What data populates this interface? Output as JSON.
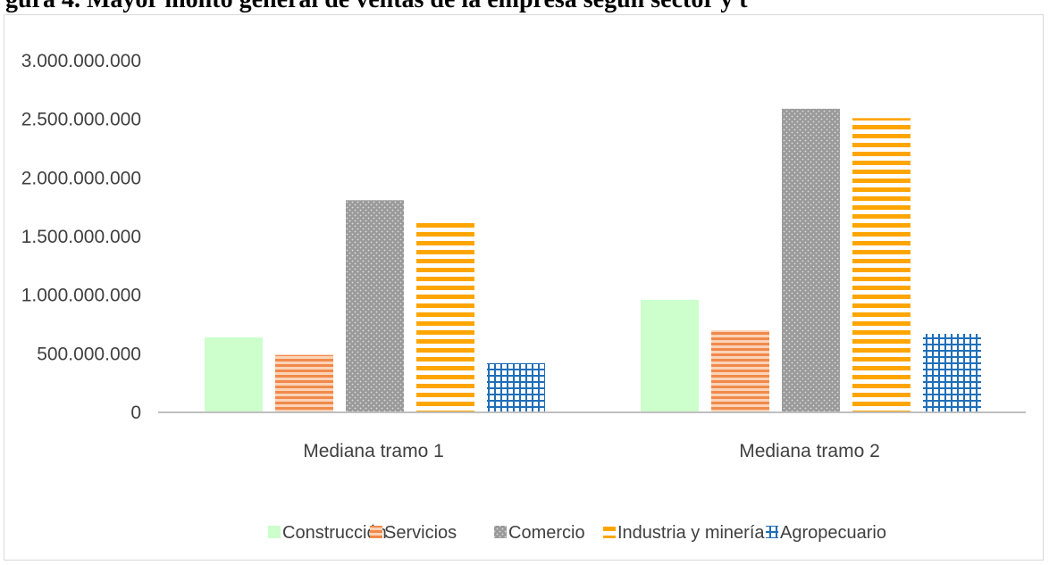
{
  "chart_data": {
    "type": "bar",
    "title": "",
    "header_fragment": "gura 4. Mayor monto general de ventas de la empresa segun sector y t",
    "categories": [
      "Mediana tramo 1",
      "Mediana tramo 2"
    ],
    "ylim": [
      0,
      3000000000
    ],
    "yticks": [
      "0",
      "500.000.000",
      "1.000.000.000",
      "1.500.000.000",
      "2.000.000.000",
      "2.500.000.000",
      "3.000.000.000"
    ],
    "grid": false,
    "legend_position": "bottom",
    "series": [
      {
        "name": "Construcción",
        "values": [
          640000000,
          960000000
        ],
        "color": "#ccffcc",
        "pattern": "solid"
      },
      {
        "name": "Servicios",
        "values": [
          490000000,
          700000000
        ],
        "color": "#f4a06a",
        "pattern": "thin-horizontal-lines"
      },
      {
        "name": "Comercio",
        "values": [
          1810000000,
          2590000000
        ],
        "color": "#a6a6a6",
        "pattern": "dotted"
      },
      {
        "name": "Industria y minería",
        "values": [
          1620000000,
          2510000000
        ],
        "color": "#ffa500",
        "pattern": "wide-horizontal-lines"
      },
      {
        "name": "Agropecuario",
        "values": [
          420000000,
          670000000
        ],
        "color": "#2e75b6",
        "pattern": "grid"
      }
    ]
  }
}
